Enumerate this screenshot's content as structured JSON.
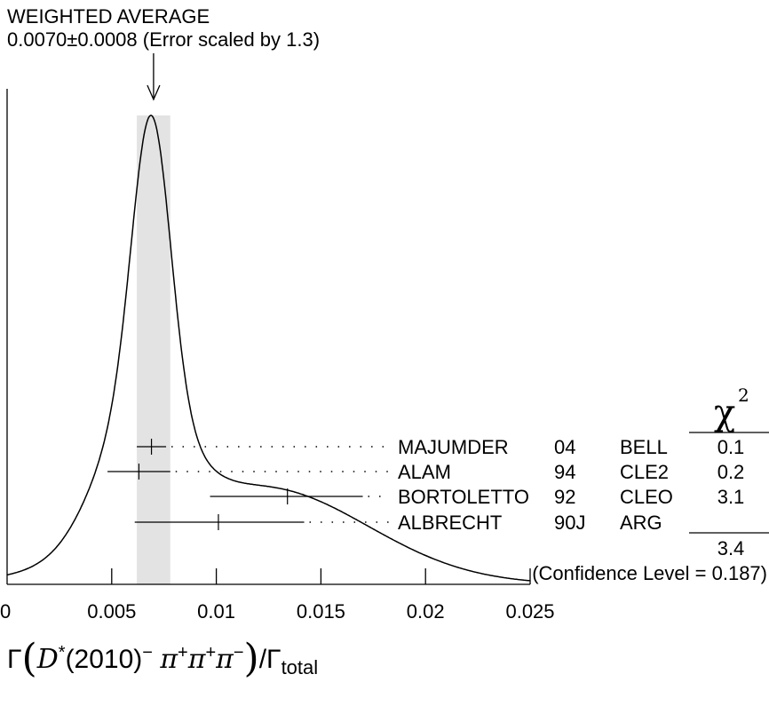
{
  "header": {
    "title": "WEIGHTED AVERAGE",
    "value": "0.0070±0.0008 (Error scaled by 1.3)"
  },
  "chart_data": {
    "type": "ideogram",
    "weighted_average": 0.007,
    "error": 0.0008,
    "error_scale_factor": 1.3,
    "band": [
      0.0062,
      0.0078
    ],
    "xlim": [
      0,
      0.025
    ],
    "xticks": [
      0,
      0.005,
      0.01,
      0.015,
      0.02,
      0.025
    ],
    "xtick_labels": [
      "0",
      "0.005",
      "0.01",
      "0.015",
      "0.02",
      "0.025"
    ],
    "xlabel": {
      "gamma": "Γ",
      "particle": "D",
      "star": "*",
      "mass": "(2010)",
      "charge": "−",
      "pion": "π",
      "plus": "+",
      "minus": "−",
      "slash": "/Γ",
      "total": "total"
    },
    "chi2_header": {
      "symbol": "χ",
      "power": "2"
    },
    "measurements": [
      {
        "author": "MAJUMDER",
        "year": "04",
        "experiment": "BELL",
        "chi2": "0.1",
        "value": 0.0069,
        "err_low": 0.0007,
        "err_high": 0.0007
      },
      {
        "author": "ALAM",
        "year": "94",
        "experiment": "CLE2",
        "chi2": "0.2",
        "value": 0.0063,
        "err_low": 0.0015,
        "err_high": 0.0015
      },
      {
        "author": "BORTOLETTO",
        "year": "92",
        "experiment": "CLEO",
        "chi2": "3.1",
        "value": 0.0134,
        "err_low": 0.0037,
        "err_high": 0.0036
      },
      {
        "author": "ALBRECHT",
        "year": "90J",
        "experiment": "ARG",
        "chi2": "",
        "value": 0.0101,
        "err_low": 0.004,
        "err_high": 0.0041
      }
    ],
    "chi2_total": "3.4",
    "confidence_level": "(Confidence Level = 0.187)"
  }
}
